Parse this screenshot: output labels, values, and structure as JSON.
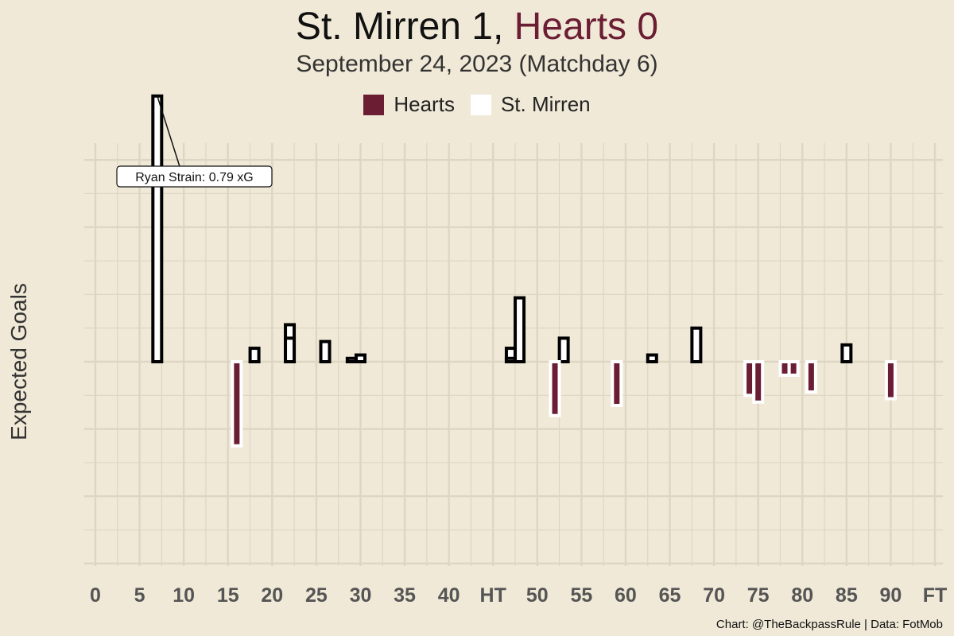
{
  "header": {
    "home_title": "St. Mirren 1,",
    "away_title": "Hearts 0",
    "subtitle": "September 24, 2023 (Matchday 6)"
  },
  "colors": {
    "background": "#F0E9D7",
    "hearts": "#6B1D33",
    "st_mirren": "#FFFFFF",
    "grid": "#DDD6C2"
  },
  "caption": "Chart: @TheBackpassRule | Data: FotMob",
  "chart_data": {
    "type": "bar",
    "title": "St. Mirren 1, Hearts 0",
    "subtitle": "September 24, 2023 (Matchday 6)",
    "xlabel": "",
    "ylabel": "Expected Goals",
    "x_ticks": [
      "0",
      "5",
      "10",
      "15",
      "20",
      "25",
      "30",
      "35",
      "40",
      "HT",
      "50",
      "55",
      "60",
      "65",
      "70",
      "75",
      "80",
      "85",
      "90",
      "FT"
    ],
    "xlim": [
      0,
      95
    ],
    "ylim": [
      -0.6,
      0.65
    ],
    "grid": true,
    "legend": {
      "placement": "top-center",
      "entries": [
        {
          "name": "Hearts",
          "color": "#6B1D33"
        },
        {
          "name": "St. Mirren",
          "color": "#FFFFFF"
        }
      ]
    },
    "annotation": {
      "text": "Ryan Strain: 0.79 xG",
      "team": "St. Mirren",
      "minute": 7,
      "xg": 0.79
    },
    "series": [
      {
        "name": "St. Mirren",
        "direction": "up",
        "shots": [
          {
            "minute": 7,
            "xg": 0.79
          },
          {
            "minute": 18,
            "xg": 0.04
          },
          {
            "minute": 22,
            "xg": 0.11
          },
          {
            "minute": 22,
            "xg": 0.07
          },
          {
            "minute": 26,
            "xg": 0.06
          },
          {
            "minute": 30,
            "xg": 0.02
          },
          {
            "minute": 29,
            "xg": 0.01
          },
          {
            "minute": 47,
            "xg": 0.04
          },
          {
            "minute": 47,
            "xg": 0.01
          },
          {
            "minute": 48,
            "xg": 0.19
          },
          {
            "minute": 53,
            "xg": 0.07
          },
          {
            "minute": 63,
            "xg": 0.02
          },
          {
            "minute": 68,
            "xg": 0.1
          },
          {
            "minute": 85,
            "xg": 0.05
          }
        ]
      },
      {
        "name": "Hearts",
        "direction": "down",
        "shots": [
          {
            "minute": 16,
            "xg": 0.25
          },
          {
            "minute": 52,
            "xg": 0.16
          },
          {
            "minute": 59,
            "xg": 0.13
          },
          {
            "minute": 74,
            "xg": 0.1
          },
          {
            "minute": 75,
            "xg": 0.12
          },
          {
            "minute": 78,
            "xg": 0.04
          },
          {
            "minute": 79,
            "xg": 0.04
          },
          {
            "minute": 81,
            "xg": 0.09
          },
          {
            "minute": 90,
            "xg": 0.11
          }
        ]
      }
    ]
  }
}
